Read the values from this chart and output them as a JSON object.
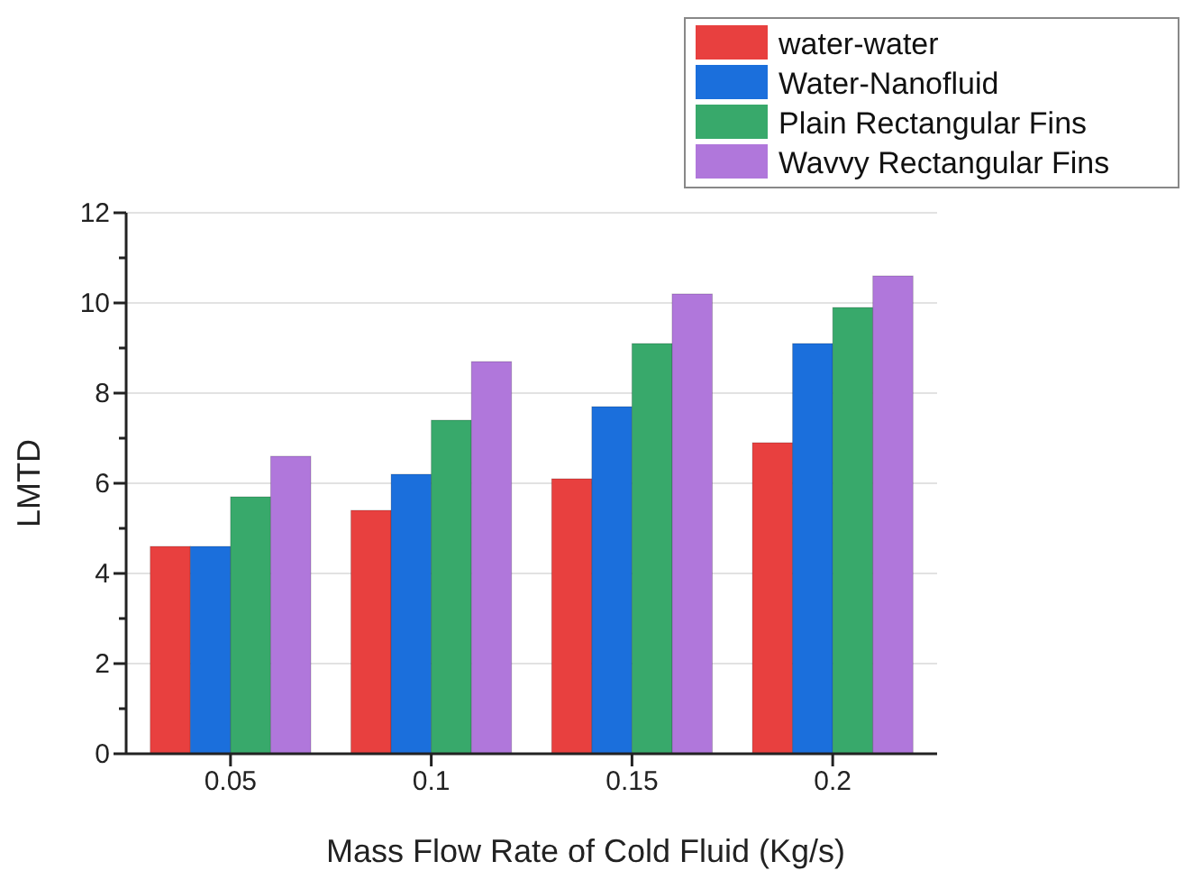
{
  "chart_data": {
    "type": "bar",
    "xlabel": "Mass Flow Rate of Cold Fluid (Kg/s)",
    "ylabel": "LMTD",
    "categories": [
      "0.05",
      "0.1",
      "0.15",
      "0.2"
    ],
    "series": [
      {
        "name": "water-water",
        "color": "#e8403f",
        "values": [
          4.6,
          5.4,
          6.1,
          6.9
        ]
      },
      {
        "name": "Water-Nanofluid",
        "color": "#1b6fdc",
        "values": [
          4.6,
          6.2,
          7.7,
          9.1
        ]
      },
      {
        "name": "Plain Rectangular Fins",
        "color": "#38a96b",
        "values": [
          5.7,
          7.4,
          9.1,
          9.9
        ]
      },
      {
        "name": "Wavvy Rectangular Fins",
        "color": "#b077db",
        "values": [
          6.6,
          8.7,
          10.2,
          10.6
        ]
      }
    ],
    "ylim": [
      0,
      12
    ],
    "yticks": [
      0,
      {
        "value": 1,
        "label": null
      },
      2,
      {
        "value": 3,
        "label": null
      },
      4,
      {
        "value": 5,
        "label": null
      },
      6,
      {
        "value": 7,
        "label": null
      },
      8,
      {
        "value": 9,
        "label": null
      },
      10,
      {
        "value": 11,
        "label": null
      },
      12
    ],
    "grid": "y",
    "legend": "top right"
  }
}
